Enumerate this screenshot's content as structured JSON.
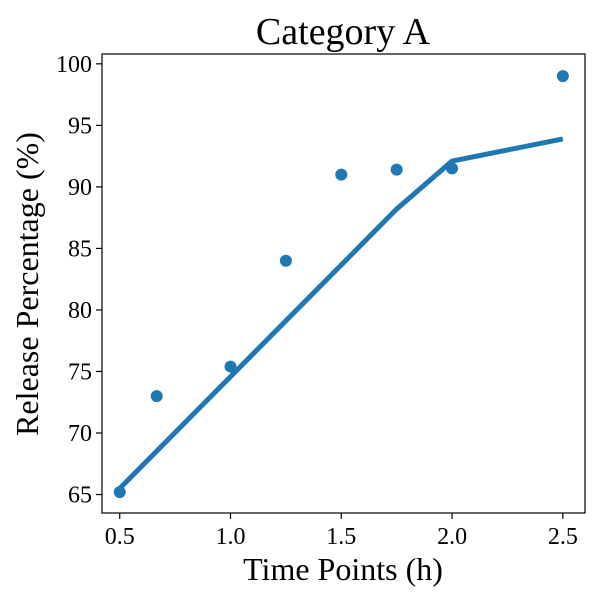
{
  "chart_data": {
    "type": "scatter",
    "title": "Category A",
    "xlabel": "Time Points (h)",
    "ylabel": "Release Percentage (%)",
    "xlim": [
      0.42,
      2.6
    ],
    "ylim": [
      63.5,
      100.8
    ],
    "xticks": [
      0.5,
      1.0,
      1.5,
      2.0,
      2.5
    ],
    "xtick_labels": [
      "0.5",
      "1.0",
      "1.5",
      "2.0",
      "2.5"
    ],
    "yticks": [
      65,
      70,
      75,
      80,
      85,
      90,
      95,
      100
    ],
    "ytick_labels": [
      "65",
      "70",
      "75",
      "80",
      "85",
      "90",
      "95",
      "100"
    ],
    "grid": false,
    "color": "#1f77b4",
    "scatter": {
      "x": [
        0.5,
        0.667,
        1.0,
        1.25,
        1.5,
        1.75,
        2.0,
        2.5
      ],
      "y": [
        65.2,
        73.0,
        75.4,
        84.0,
        91.0,
        91.4,
        91.5,
        99.0
      ]
    },
    "fit_line": {
      "x": [
        0.5,
        1.75,
        2.0,
        2.5
      ],
      "y": [
        65.5,
        88.2,
        92.1,
        93.9
      ]
    }
  }
}
